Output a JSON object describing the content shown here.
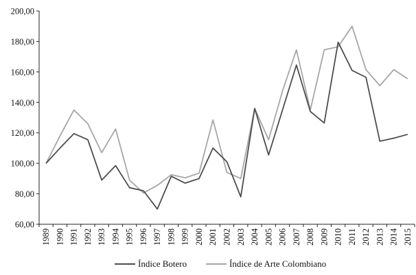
{
  "chart_data": {
    "type": "line",
    "title": "",
    "xlabel": "",
    "ylabel": "",
    "ylim": [
      60,
      200
    ],
    "y_ticks": [
      "60,00",
      "80,00",
      "100,00",
      "120,00",
      "140,00",
      "160,00",
      "180,00",
      "200,00"
    ],
    "y_tick_values": [
      60,
      80,
      100,
      120,
      140,
      160,
      180,
      200
    ],
    "categories": [
      "1989",
      "1990",
      "1991",
      "1992",
      "1993",
      "1994",
      "1995",
      "1996",
      "1997",
      "1998",
      "1999",
      "2000",
      "2001",
      "2002",
      "2003",
      "2004",
      "2005",
      "2006",
      "2007",
      "2008",
      "2009",
      "2010",
      "2011",
      "2012",
      "2013",
      "2014",
      "2015"
    ],
    "grid": false,
    "legend_position": "bottom",
    "series": [
      {
        "name": "Índice Botero",
        "color": "#4d4d4d",
        "values": [
          100,
          110,
          119.5,
          115.5,
          89,
          98.5,
          84,
          82,
          70,
          91.5,
          87,
          90,
          110,
          101,
          78,
          136,
          105.5,
          135,
          164.5,
          134,
          126.5,
          179.5,
          161,
          156.5,
          114.5,
          116.5,
          119
        ]
      },
      {
        "name": "Índice de Arte Colombiano",
        "color": "#a6a6a6",
        "values": [
          100,
          118,
          135,
          126,
          107,
          122.5,
          89,
          80.5,
          85.5,
          92.5,
          90.5,
          93.5,
          128.5,
          94,
          90,
          136,
          115.5,
          147.5,
          174.5,
          135,
          174.5,
          176.5,
          190,
          161.5,
          151,
          161.5,
          155.5
        ]
      }
    ]
  }
}
